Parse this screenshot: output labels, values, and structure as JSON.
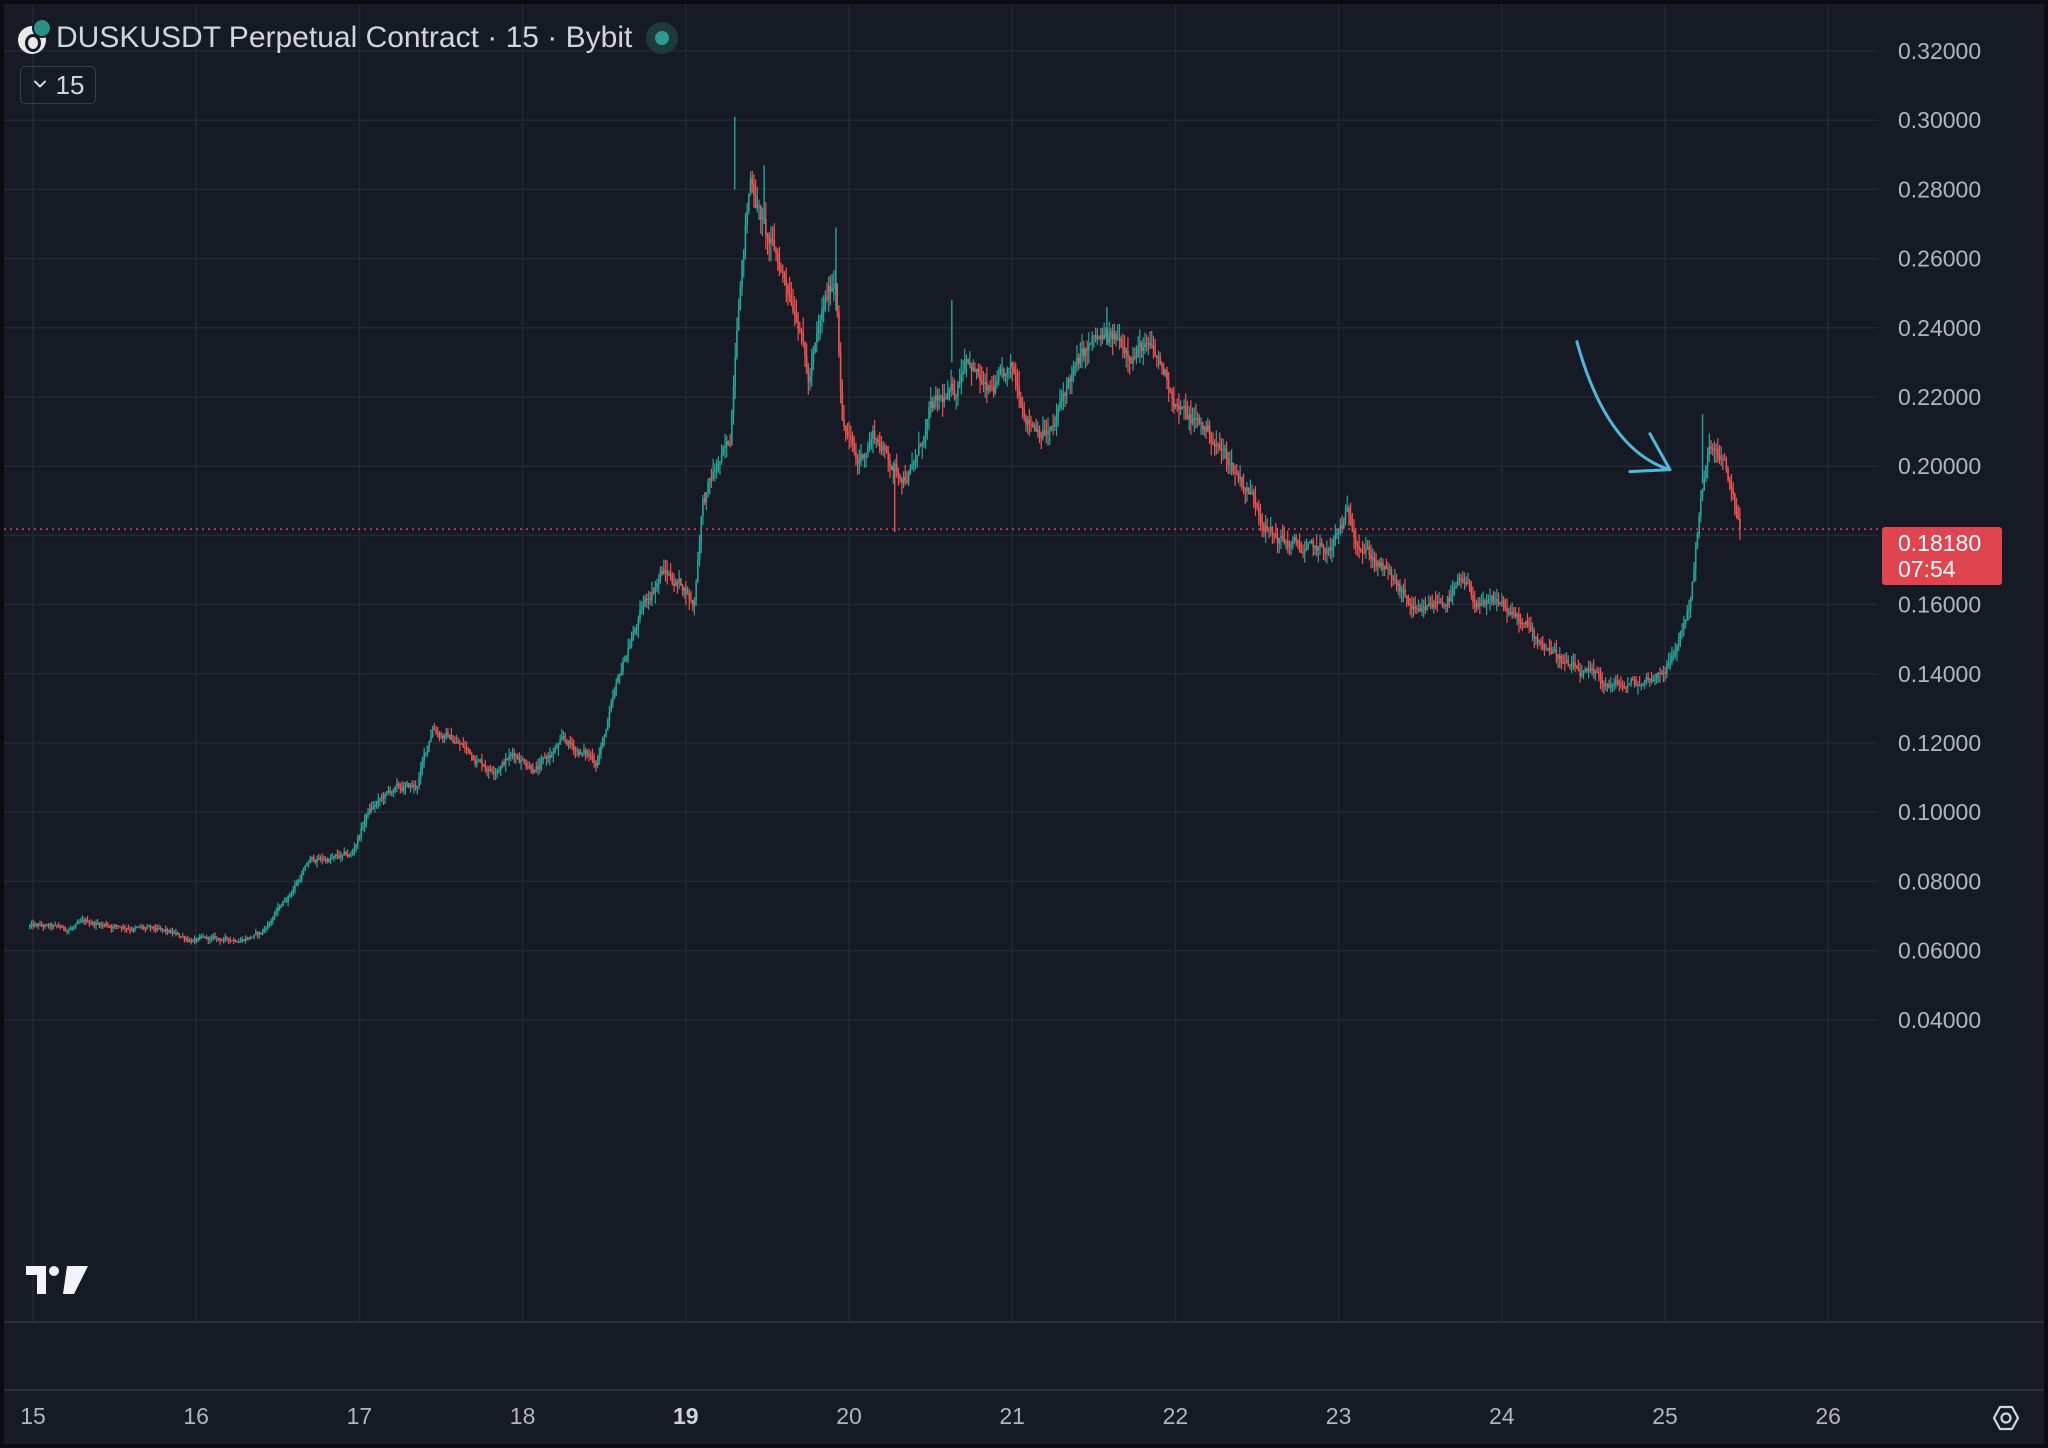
{
  "header": {
    "title": "DUSKUSDT Perpetual Contract · 15 · Bybit",
    "interval": "15"
  },
  "price_badge": {
    "price": "0.18180",
    "countdown": "07:54"
  },
  "colors": {
    "background": "#161a25",
    "grid": "#242834",
    "up": "#26a69a",
    "down": "#ef5350",
    "last_price_line": "#e0444f",
    "annotation_arrow": "#4fb8d9"
  },
  "icons": {
    "logo": "tradingview-logo-icon",
    "settings": "settings-icon",
    "interval": "chevron-down-icon"
  },
  "chart_data": {
    "type": "candlestick",
    "title": "DUSKUSDT Perpetual Contract · 15 · Bybit",
    "interval": "15",
    "xlabel": "",
    "ylabel": "",
    "ylim": [
      0.04,
      0.32
    ],
    "yticks": [
      "0.32000",
      "0.30000",
      "0.28000",
      "0.26000",
      "0.24000",
      "0.22000",
      "0.20000",
      "0.18000",
      "0.16000",
      "0.14000",
      "0.12000",
      "0.10000",
      "0.08000",
      "0.06000",
      "0.04000"
    ],
    "xticks": [
      "15",
      "16",
      "17",
      "18",
      "19",
      "20",
      "21",
      "22",
      "23",
      "24",
      "25",
      "26"
    ],
    "xticks_bold": [
      "19"
    ],
    "xlim": [
      14.98,
      26.4
    ],
    "last_price": 0.1818,
    "grid": true,
    "price_path": [
      [
        14.98,
        0.067
      ],
      [
        15.2,
        0.066
      ],
      [
        15.35,
        0.068
      ],
      [
        15.6,
        0.067
      ],
      [
        15.8,
        0.065
      ],
      [
        16.0,
        0.063
      ],
      [
        16.2,
        0.063
      ],
      [
        16.4,
        0.065
      ],
      [
        16.55,
        0.075
      ],
      [
        16.7,
        0.086
      ],
      [
        16.95,
        0.087
      ],
      [
        17.05,
        0.1
      ],
      [
        17.2,
        0.106
      ],
      [
        17.35,
        0.107
      ],
      [
        17.45,
        0.125
      ],
      [
        17.6,
        0.12
      ],
      [
        17.8,
        0.113
      ],
      [
        17.95,
        0.117
      ],
      [
        18.1,
        0.113
      ],
      [
        18.25,
        0.12
      ],
      [
        18.45,
        0.115
      ],
      [
        18.5,
        0.122
      ],
      [
        18.65,
        0.148
      ],
      [
        18.75,
        0.16
      ],
      [
        18.85,
        0.17
      ],
      [
        19.0,
        0.165
      ],
      [
        19.05,
        0.16
      ],
      [
        19.1,
        0.19
      ],
      [
        19.2,
        0.2
      ],
      [
        19.27,
        0.205
      ],
      [
        19.32,
        0.25
      ],
      [
        19.4,
        0.285
      ],
      [
        19.5,
        0.265
      ],
      [
        19.6,
        0.255
      ],
      [
        19.7,
        0.245
      ],
      [
        19.75,
        0.225
      ],
      [
        19.85,
        0.245
      ],
      [
        19.92,
        0.255
      ],
      [
        19.96,
        0.215
      ],
      [
        20.05,
        0.2
      ],
      [
        20.15,
        0.21
      ],
      [
        20.3,
        0.198
      ],
      [
        20.4,
        0.2
      ],
      [
        20.5,
        0.215
      ],
      [
        20.65,
        0.22
      ],
      [
        20.72,
        0.235
      ],
      [
        20.85,
        0.22
      ],
      [
        21.0,
        0.225
      ],
      [
        21.1,
        0.215
      ],
      [
        21.25,
        0.21
      ],
      [
        21.35,
        0.225
      ],
      [
        21.5,
        0.235
      ],
      [
        21.65,
        0.235
      ],
      [
        21.8,
        0.235
      ],
      [
        21.95,
        0.225
      ],
      [
        22.05,
        0.215
      ],
      [
        22.2,
        0.21
      ],
      [
        22.35,
        0.2
      ],
      [
        22.5,
        0.19
      ],
      [
        22.6,
        0.18
      ],
      [
        22.8,
        0.175
      ],
      [
        22.95,
        0.175
      ],
      [
        23.05,
        0.185
      ],
      [
        23.2,
        0.175
      ],
      [
        23.35,
        0.165
      ],
      [
        23.5,
        0.155
      ],
      [
        23.6,
        0.16
      ],
      [
        23.75,
        0.165
      ],
      [
        23.9,
        0.158
      ],
      [
        24.0,
        0.16
      ],
      [
        24.1,
        0.155
      ],
      [
        24.2,
        0.15
      ],
      [
        24.3,
        0.148
      ],
      [
        24.45,
        0.14
      ],
      [
        24.6,
        0.137
      ],
      [
        24.75,
        0.136
      ],
      [
        24.85,
        0.137
      ],
      [
        24.95,
        0.14
      ],
      [
        25.05,
        0.145
      ],
      [
        25.15,
        0.16
      ],
      [
        25.22,
        0.19
      ],
      [
        25.28,
        0.205
      ],
      [
        25.35,
        0.2
      ],
      [
        25.42,
        0.19
      ],
      [
        25.46,
        0.1818
      ]
    ],
    "annotations": [
      {
        "type": "arrow",
        "from": [
          24.46,
          0.236
        ],
        "to": [
          25.03,
          0.199
        ],
        "direction": "down-right"
      }
    ]
  }
}
